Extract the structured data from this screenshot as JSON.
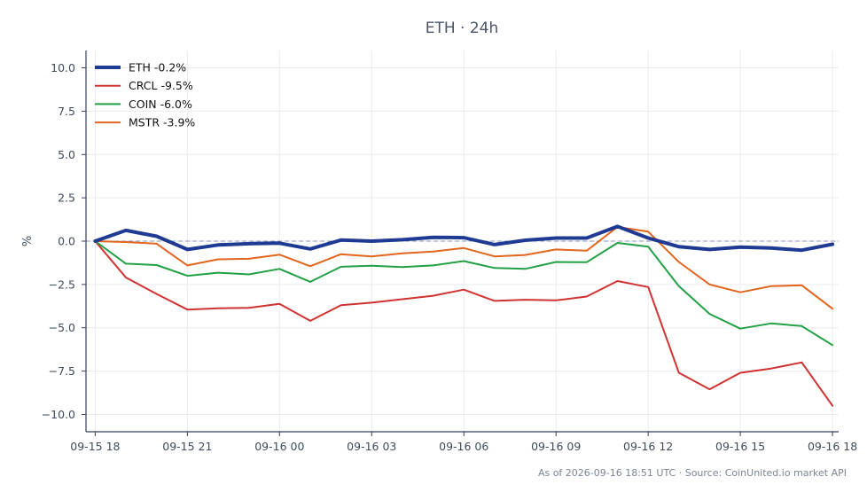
{
  "chart_data": {
    "type": "line",
    "title": "ETH · 24h",
    "xlabel": "",
    "ylabel": "%",
    "ylim": [
      -11,
      11
    ],
    "xlim": [
      -0.3,
      24.2
    ],
    "grid": true,
    "legend_position": "top-left",
    "zero_line": true,
    "footer": "As of 2026-09-16 18:51 UTC · Source: CoinUnited.io market API",
    "x_ticks": [
      {
        "label": "09-15 18",
        "x": 0
      },
      {
        "label": "09-15 21",
        "x": 3
      },
      {
        "label": "09-16 00",
        "x": 6
      },
      {
        "label": "09-16 03",
        "x": 9
      },
      {
        "label": "09-16 06",
        "x": 12
      },
      {
        "label": "09-16 09",
        "x": 15
      },
      {
        "label": "09-16 12",
        "x": 18
      },
      {
        "label": "09-16 15",
        "x": 21
      },
      {
        "label": "09-16 18",
        "x": 24
      }
    ],
    "y_ticks": [
      {
        "label": "10.0",
        "value": 10
      },
      {
        "label": "7.5",
        "value": 7.5
      },
      {
        "label": "5.0",
        "value": 5
      },
      {
        "label": "2.5",
        "value": 2.5
      },
      {
        "label": "0.0",
        "value": 0
      },
      {
        "label": "−2.5",
        "value": -2.5
      },
      {
        "label": "−5.0",
        "value": -5
      },
      {
        "label": "−7.5",
        "value": -7.5
      },
      {
        "label": "−10.0",
        "value": -10
      }
    ],
    "x": [
      0,
      1,
      2,
      3,
      4,
      5,
      6,
      7,
      8,
      9,
      10,
      11,
      12,
      13,
      14,
      15,
      16,
      17,
      18,
      19,
      20,
      21,
      22,
      23,
      24
    ],
    "series": [
      {
        "name": "ETH -0.2%",
        "color": "#1f3a93",
        "width": 4,
        "values": [
          0.0,
          0.62,
          0.28,
          -0.48,
          -0.22,
          -0.15,
          -0.12,
          -0.45,
          0.06,
          0.0,
          0.08,
          0.22,
          0.2,
          -0.2,
          0.05,
          0.18,
          0.18,
          0.85,
          0.18,
          -0.32,
          -0.48,
          -0.35,
          -0.4,
          -0.52,
          -0.18
        ]
      },
      {
        "name": "CRCL -9.5%",
        "color": "#d03232",
        "width": 2,
        "values": [
          0.0,
          -2.1,
          -3.05,
          -3.95,
          -3.88,
          -3.85,
          -3.62,
          -4.6,
          -3.7,
          -3.55,
          -3.35,
          -3.15,
          -2.8,
          -3.45,
          -3.38,
          -3.42,
          -3.2,
          -2.3,
          -2.65,
          -7.6,
          -8.55,
          -7.6,
          -7.35,
          -7.0,
          -9.5
        ]
      },
      {
        "name": "COIN -6.0%",
        "color": "#22a045",
        "width": 2,
        "values": [
          0.0,
          -1.3,
          -1.38,
          -2.0,
          -1.82,
          -1.92,
          -1.6,
          -2.35,
          -1.48,
          -1.42,
          -1.5,
          -1.4,
          -1.15,
          -1.55,
          -1.6,
          -1.2,
          -1.22,
          -0.1,
          -0.32,
          -2.6,
          -4.2,
          -5.05,
          -4.75,
          -4.9,
          -6.0
        ]
      },
      {
        "name": "MSTR -3.9%",
        "color": "#e0651e",
        "width": 2,
        "values": [
          0.0,
          -0.05,
          -0.15,
          -1.4,
          -1.05,
          -1.02,
          -0.78,
          -1.45,
          -0.75,
          -0.88,
          -0.7,
          -0.6,
          -0.4,
          -0.88,
          -0.8,
          -0.48,
          -0.55,
          0.82,
          0.55,
          -1.2,
          -2.5,
          -2.95,
          -2.6,
          -2.55,
          -3.9
        ]
      }
    ]
  }
}
